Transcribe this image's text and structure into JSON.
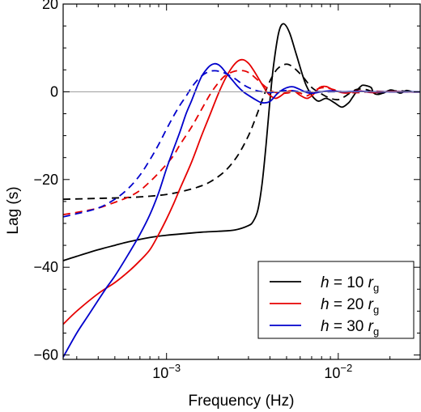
{
  "chart_data": {
    "type": "line",
    "xlabel": "Frequency (Hz)",
    "ylabel": "Lag (s)",
    "xscale": "log",
    "xlim": [
      0.00025,
      0.03
    ],
    "ylim": [
      -61,
      20
    ],
    "x_ticks": [
      {
        "value": 0.001,
        "base": "10",
        "exp": "−3"
      },
      {
        "value": 0.01,
        "base": "10",
        "exp": "−2"
      }
    ],
    "y_ticks": [
      {
        "value": 20,
        "label": "20"
      },
      {
        "value": 0,
        "label": "0"
      },
      {
        "value": -20,
        "label": "−20"
      },
      {
        "value": -40,
        "label": "−40"
      },
      {
        "value": -60,
        "label": "−60"
      }
    ],
    "zero_line": true,
    "grid": false,
    "legend_position": "bottom-right",
    "legend": [
      {
        "prefix": "h = ",
        "value": "10",
        "unit": "r",
        "sub": "g",
        "color": "#000000"
      },
      {
        "prefix": "h = ",
        "value": "20",
        "unit": "r",
        "sub": "g",
        "color": "#e60000"
      },
      {
        "prefix": "h = ",
        "value": "30",
        "unit": "r",
        "sub": "g",
        "color": "#0000cc"
      }
    ],
    "series": [
      {
        "color": "#000000",
        "dash": false,
        "x": [
          0.00025,
          0.0003,
          0.0004,
          0.0005,
          0.0006,
          0.0008,
          0.001,
          0.0013,
          0.0016,
          0.002,
          0.0025,
          0.003,
          0.0032,
          0.0034,
          0.0036,
          0.0038,
          0.004,
          0.0042,
          0.0045,
          0.0048,
          0.0052,
          0.0057,
          0.0065,
          0.0075,
          0.0085,
          0.0095,
          0.0105,
          0.0115,
          0.012,
          0.013,
          0.0135,
          0.014,
          0.0155,
          0.016,
          0.017,
          0.0185,
          0.02,
          0.021,
          0.023,
          0.025,
          0.027,
          0.03
        ],
        "y": [
          -38.5,
          -37.5,
          -36,
          -35,
          -34.2,
          -33.2,
          -32.7,
          -32.3,
          -32,
          -31.8,
          -31.5,
          -30.5,
          -29.5,
          -27,
          -21,
          -12,
          -2,
          6,
          13.5,
          15.5,
          13.5,
          8.5,
          1.5,
          -2,
          -1.5,
          -2.5,
          -3.5,
          -2.5,
          -1.5,
          0.5,
          1.2,
          1.5,
          1,
          -0.2,
          -0.6,
          -0.2,
          0.4,
          0.3,
          -0.3,
          0.3,
          0,
          0
        ]
      },
      {
        "color": "#000000",
        "dash": true,
        "x": [
          0.00025,
          0.0004,
          0.0006,
          0.0008,
          0.001,
          0.0012,
          0.0015,
          0.0018,
          0.0022,
          0.0026,
          0.003,
          0.0033,
          0.0036,
          0.0039,
          0.0042,
          0.0045,
          0.005,
          0.0055,
          0.0062,
          0.007,
          0.008,
          0.009,
          0.01,
          0.0108,
          0.012,
          0.013,
          0.0145,
          0.016,
          0.018,
          0.02,
          0.023,
          0.026,
          0.03
        ],
        "y": [
          -24.5,
          -24.3,
          -24.1,
          -23.8,
          -23.4,
          -22.8,
          -21.8,
          -20.5,
          -18,
          -14.5,
          -10,
          -6,
          -2,
          1.5,
          4,
          5.5,
          6.3,
          5.5,
          3.5,
          1,
          -0.5,
          -1.5,
          -1.8,
          -1.2,
          0,
          0.6,
          0.5,
          0,
          -0.3,
          0.1,
          0.2,
          0,
          0
        ]
      },
      {
        "color": "#e60000",
        "dash": false,
        "x": [
          0.00025,
          0.0003,
          0.0004,
          0.0005,
          0.0006,
          0.0007,
          0.0008,
          0.0009,
          0.001,
          0.0011,
          0.0012,
          0.0014,
          0.0016,
          0.0018,
          0.002,
          0.0022,
          0.0024,
          0.0026,
          0.0028,
          0.003,
          0.0032,
          0.0035,
          0.0038,
          0.004,
          0.0043,
          0.0046,
          0.005,
          0.0055,
          0.006,
          0.0066,
          0.0072,
          0.0078,
          0.0085,
          0.0095,
          0.011,
          0.013,
          0.016,
          0.02,
          0.025,
          0.03
        ],
        "y": [
          -53,
          -50,
          -46,
          -43.5,
          -41,
          -38.5,
          -36,
          -32.5,
          -29,
          -25.5,
          -22,
          -16,
          -10,
          -5,
          -0.5,
          3,
          5.5,
          7,
          7.3,
          6.5,
          5,
          2.5,
          0.2,
          -0.8,
          -1.5,
          -1,
          0,
          0.2,
          -0.8,
          -1.5,
          -0.5,
          1,
          1.2,
          0.3,
          -0.3,
          0.2,
          -0.2,
          0.1,
          0,
          0
        ]
      },
      {
        "color": "#e60000",
        "dash": true,
        "x": [
          0.00025,
          0.0003,
          0.0004,
          0.0005,
          0.0006,
          0.0007,
          0.0008,
          0.0009,
          0.001,
          0.0011,
          0.0012,
          0.0014,
          0.0016,
          0.0018,
          0.002,
          0.0022,
          0.0025,
          0.0028,
          0.003,
          0.0032,
          0.0035,
          0.0038,
          0.004,
          0.0045,
          0.005,
          0.0055,
          0.006,
          0.0066,
          0.0072,
          0.008,
          0.009,
          0.0105,
          0.013,
          0.016,
          0.02,
          0.025,
          0.03
        ],
        "y": [
          -28,
          -27.5,
          -26.5,
          -25.2,
          -24,
          -22.5,
          -20.5,
          -18.5,
          -16.5,
          -14.5,
          -12,
          -8,
          -4,
          -0.5,
          2,
          3.7,
          4.7,
          4.8,
          4.4,
          3.6,
          2.2,
          1,
          0.3,
          -0.3,
          -0.3,
          0,
          -0.3,
          -0.9,
          0.2,
          0.9,
          0.7,
          0,
          -0.2,
          0.1,
          0,
          0,
          0
        ]
      },
      {
        "color": "#0000cc",
        "dash": false,
        "x": [
          0.00025,
          0.0003,
          0.00035,
          0.0004,
          0.00045,
          0.0005,
          0.0006,
          0.0007,
          0.0008,
          0.0009,
          0.001,
          0.0011,
          0.0012,
          0.0013,
          0.0014,
          0.0015,
          0.0016,
          0.0017,
          0.0018,
          0.0019,
          0.002,
          0.0021,
          0.0022,
          0.0024,
          0.0026,
          0.0028,
          0.003,
          0.0033,
          0.0036,
          0.004,
          0.0044,
          0.0048,
          0.0052,
          0.0055,
          0.006,
          0.0066,
          0.0072,
          0.008,
          0.009,
          0.0105,
          0.013,
          0.016,
          0.02,
          0.025,
          0.03
        ],
        "y": [
          -60.5,
          -55,
          -51,
          -47.5,
          -44.5,
          -42,
          -37,
          -32.5,
          -28,
          -23,
          -17.5,
          -13,
          -9,
          -5,
          -2,
          1,
          3.5,
          5,
          6,
          6.4,
          6.2,
          5.5,
          4.5,
          2.8,
          1.2,
          0,
          -0.8,
          -1.8,
          -2.5,
          -2.2,
          -0.5,
          0.6,
          1.1,
          1.1,
          0.5,
          -0.2,
          -0.3,
          0,
          0.2,
          0,
          0.1,
          0,
          0,
          0,
          0
        ]
      },
      {
        "color": "#0000cc",
        "dash": true,
        "x": [
          0.00025,
          0.0003,
          0.0004,
          0.0005,
          0.0006,
          0.0007,
          0.0008,
          0.0009,
          0.001,
          0.0011,
          0.0012,
          0.0013,
          0.0014,
          0.0015,
          0.0016,
          0.0017,
          0.0018,
          0.0019,
          0.002,
          0.0022,
          0.0025,
          0.0028,
          0.0032,
          0.0036,
          0.004,
          0.0045,
          0.005,
          0.0055,
          0.006,
          0.007,
          0.008,
          0.009,
          0.0105,
          0.013,
          0.016,
          0.02,
          0.025,
          0.03
        ],
        "y": [
          -28.5,
          -27.8,
          -26.5,
          -24.5,
          -22,
          -19,
          -15.5,
          -12,
          -8.5,
          -5.5,
          -3,
          -1,
          1,
          2.5,
          3.6,
          4.3,
          4.7,
          4.8,
          4.7,
          4.2,
          3,
          1.6,
          0.5,
          0,
          -0.2,
          0.1,
          0.3,
          0.2,
          0,
          0.1,
          0,
          0,
          0,
          0,
          0,
          0,
          0,
          0
        ]
      }
    ]
  }
}
